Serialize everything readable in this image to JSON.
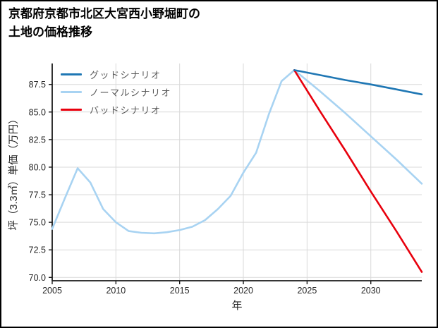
{
  "header": {
    "title_lines": [
      "京都府京都市北区大宮西小野堀町の",
      "土地の価格推移"
    ]
  },
  "chart_data": {
    "type": "line",
    "title": "京都府京都市北区大宮西小野堀町の土地の価格推移",
    "xlabel": "年",
    "ylabel": "坪（3.3㎡）単価（万円）",
    "xlim": [
      2005,
      2034
    ],
    "ylim": [
      69.7,
      89.4
    ],
    "xticks": [
      2005,
      2010,
      2015,
      2020,
      2025,
      2030
    ],
    "yticks": [
      70.0,
      72.5,
      75.0,
      77.5,
      80.0,
      82.5,
      85.0,
      87.5
    ],
    "grid": true,
    "legend_position": "upper-left",
    "colors": {
      "grid": "#d9d9d9",
      "axis": "#1a1a1a",
      "tick_label": "#262626",
      "legend_label": "#595959",
      "background": "#ffffff"
    },
    "series": [
      {
        "key": "good-scenario",
        "name": "グッドシナリオ",
        "color": "#1f77b4",
        "x": [
          2024,
          2026,
          2028,
          2030,
          2032,
          2034
        ],
        "y": [
          88.8,
          88.35,
          87.9,
          87.5,
          87.05,
          86.6
        ]
      },
      {
        "key": "normal-scenario",
        "name": "ノーマルシナリオ",
        "color": "#a8d3f2",
        "x": [
          2005,
          2006,
          2007,
          2008,
          2009,
          2010,
          2011,
          2012,
          2013,
          2014,
          2015,
          2016,
          2017,
          2018,
          2019,
          2020,
          2021,
          2022,
          2023,
          2024,
          2026,
          2028,
          2030,
          2032,
          2034
        ],
        "y": [
          74.4,
          77.2,
          79.9,
          78.6,
          76.2,
          75.0,
          74.2,
          74.05,
          74.0,
          74.1,
          74.3,
          74.6,
          75.2,
          76.2,
          77.4,
          79.5,
          81.3,
          84.8,
          87.8,
          88.8,
          86.9,
          84.9,
          82.8,
          80.7,
          78.5
        ]
      },
      {
        "key": "bad-scenario",
        "name": "バッドシナリオ",
        "color": "#e8000d",
        "x": [
          2024,
          2026,
          2028,
          2030,
          2032,
          2034
        ],
        "y": [
          88.8,
          85.1,
          81.5,
          77.8,
          74.2,
          70.5
        ]
      }
    ]
  }
}
